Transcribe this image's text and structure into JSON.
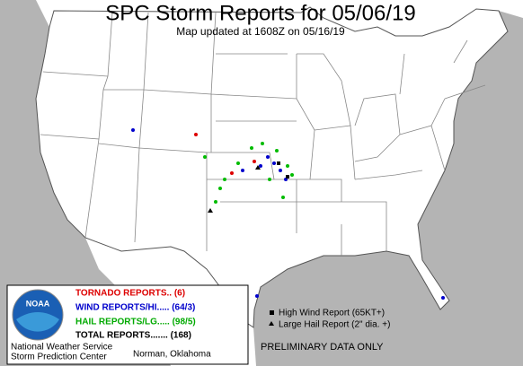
{
  "header": {
    "title": "SPC Storm Reports for 05/06/19",
    "subtitle": "Map updated at 1608Z on 05/16/19"
  },
  "legend": {
    "tornado": "TORNADO REPORTS.. (6)",
    "wind": "WIND REPORTS/HI..... (64/3)",
    "hail": "HAIL REPORTS/LG..... (98/5)",
    "total": "TOTAL REPORTS....... (168)",
    "logo": "NOAA",
    "agency": "National Weather Service",
    "center": "Storm Prediction Center",
    "location": "Norman, Oklahoma"
  },
  "key": {
    "high_wind": "High Wind Report (65KT+)",
    "large_hail": "Large Hail Report (2\" dia. +)"
  },
  "notice": "PRELIMINARY DATA ONLY"
}
